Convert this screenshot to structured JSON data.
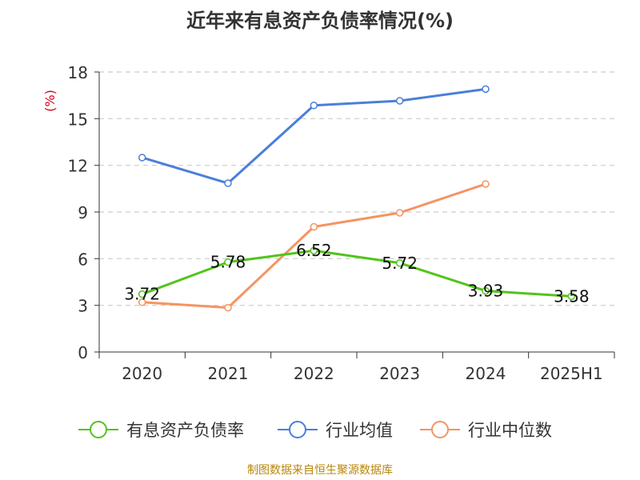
{
  "title": "近年来有息资产负债率情况(%)",
  "source": "制图数据来自恒生聚源数据库",
  "colors": {
    "series_green": "#52c41a",
    "series_blue": "#4a7fd9",
    "series_orange": "#f59461",
    "ylabel": "#d0021b",
    "grid": "#cccccc",
    "axis": "#333333",
    "source": "#b8860b"
  },
  "chart_data": {
    "type": "line",
    "ylabel": "(%)",
    "categories": [
      "2020",
      "2021",
      "2022",
      "2023",
      "2024",
      "2025H1"
    ],
    "y_ticks": [
      0,
      3,
      6,
      9,
      12,
      15,
      18
    ],
    "ylim": [
      0,
      18
    ],
    "grid": true,
    "legend_position": "bottom",
    "series": [
      {
        "name": "有息资产负债率",
        "color": "#52c41a",
        "values": [
          3.72,
          5.78,
          6.52,
          5.72,
          3.93,
          3.58
        ],
        "labels": [
          "3.72",
          "5.78",
          "6.52",
          "5.72",
          "3.93",
          "3.58"
        ]
      },
      {
        "name": "行业均值",
        "color": "#4a7fd9",
        "values": [
          12.5,
          10.85,
          15.85,
          16.15,
          16.9,
          null
        ]
      },
      {
        "name": "行业中位数",
        "color": "#f59461",
        "values": [
          3.2,
          2.85,
          8.05,
          8.95,
          10.8,
          null
        ]
      }
    ]
  }
}
